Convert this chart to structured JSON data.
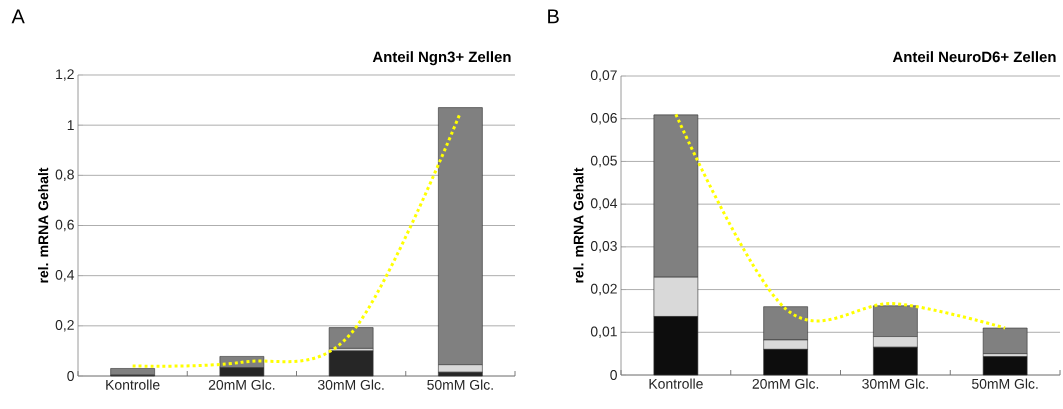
{
  "chart_data": [
    {
      "type": "bar",
      "title": "Anteil Ngn3+ Zellen",
      "ylabel": "rel. mRNA Gehalt",
      "annotations": [
        "A"
      ],
      "stacked": true,
      "grid": "y",
      "categories": [
        "Kontrolle",
        "20mM Glc.",
        "30mM Glc.",
        "50mM Glc."
      ],
      "ylim": [
        0,
        1.2
      ],
      "yticks": [
        0,
        {
          "value": 0.2,
          "label": "0,2"
        },
        {
          "value": 0.4,
          "label": "0,4"
        },
        {
          "value": 0.6,
          "label": "0,6"
        },
        {
          "value": 0.8,
          "label": "0,8"
        },
        1,
        {
          "value": 1.2,
          "label": "1,2"
        }
      ],
      "series": [
        {
          "color": "#262626",
          "values": [
            0.002,
            0.033,
            0.1,
            0.015
          ]
        },
        {
          "color": "#d9d9d9",
          "values": [
            0.003,
            null,
            0.01,
            0.03
          ]
        },
        {
          "color": "#808080",
          "values": [
            0.025,
            0.045,
            0.083,
            1.025
          ]
        },
        {
          "type": "line",
          "line_style": "dotted",
          "color": "#ffff00",
          "values": [
            0.04,
            0.055,
            0.17,
            1.05
          ]
        }
      ]
    },
    {
      "type": "bar",
      "title": "Anteil NeuroD6+ Zellen",
      "ylabel": "rel. mRNA Gehalt",
      "annotations": [
        "B"
      ],
      "stacked": true,
      "grid": "y",
      "categories": [
        "Kontrolle",
        "20mM Glc.",
        "30mM Glc.",
        "50mM Glc."
      ],
      "ylim": [
        0,
        0.07
      ],
      "yticks": [
        0,
        {
          "value": 0.01,
          "label": "0,01"
        },
        {
          "value": 0.02,
          "label": "0,02"
        },
        {
          "value": 0.03,
          "label": "0,03"
        },
        {
          "value": 0.04,
          "label": "0,04"
        },
        {
          "value": 0.05,
          "label": "0,05"
        },
        {
          "value": 0.06,
          "label": "0,06"
        },
        {
          "value": 0.07,
          "label": "0,07"
        }
      ],
      "series": [
        {
          "color": "#0d0d0d",
          "values": [
            0.0137,
            0.006,
            0.0065,
            0.0043
          ]
        },
        {
          "color": "#d9d9d9",
          "values": [
            0.0092,
            0.0022,
            0.0025,
            0.0007
          ]
        },
        {
          "color": "#808080",
          "values": [
            0.038,
            0.0078,
            0.0072,
            0.006
          ]
        },
        {
          "type": "line",
          "line_style": "dotted",
          "color": "#ffff00",
          "values": [
            0.061,
            0.0155,
            0.0167,
            0.011
          ]
        }
      ]
    }
  ]
}
